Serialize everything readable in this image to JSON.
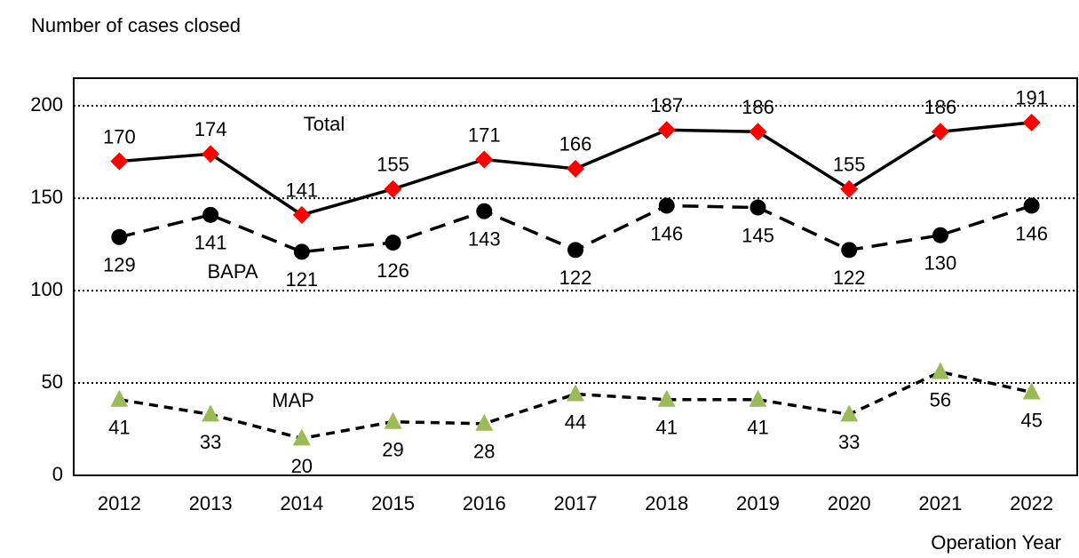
{
  "chart_data": {
    "type": "line",
    "y_axis_title": "Number of cases closed",
    "x_axis_title": "Operation Year",
    "categories": [
      "2012",
      "2013",
      "2014",
      "2015",
      "2016",
      "2017",
      "2018",
      "2019",
      "2020",
      "2021",
      "2022"
    ],
    "series": [
      {
        "name": "Total",
        "color": "#ff0000",
        "values": [
          170,
          174,
          141,
          155,
          171,
          166,
          187,
          186,
          155,
          186,
          191
        ]
      },
      {
        "name": "BAPA",
        "color": "#000000",
        "values": [
          129,
          141,
          121,
          126,
          143,
          122,
          146,
          145,
          122,
          130,
          146
        ]
      },
      {
        "name": "MAP",
        "color": "#9bbb59",
        "values": [
          41,
          33,
          20,
          29,
          28,
          44,
          41,
          41,
          33,
          56,
          45
        ]
      }
    ],
    "ylim": [
      0,
      215
    ],
    "yticks": [
      0,
      50,
      100,
      150,
      200
    ],
    "grid": true
  }
}
